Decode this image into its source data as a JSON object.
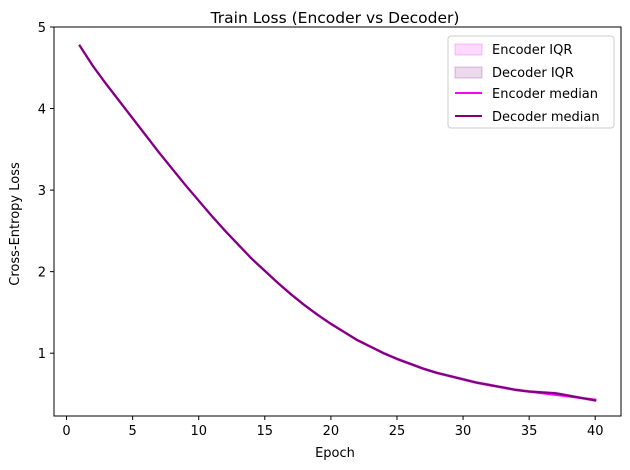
{
  "chart_data": {
    "type": "line",
    "title": "Train Loss (Encoder vs Decoder)",
    "xlabel": "Epoch",
    "ylabel": "Cross-Entropy Loss",
    "xlim": [
      -0.95,
      41.95
    ],
    "ylim": [
      0.23,
      5.0
    ],
    "xticks": [
      0,
      5,
      10,
      15,
      20,
      25,
      30,
      35,
      40
    ],
    "yticks": [
      1,
      2,
      3,
      4,
      5
    ],
    "grid": false,
    "legend_position": "top-right",
    "x": [
      1,
      2,
      3,
      4,
      5,
      6,
      7,
      8,
      9,
      10,
      11,
      12,
      13,
      14,
      15,
      16,
      17,
      18,
      19,
      20,
      21,
      22,
      23,
      24,
      25,
      26,
      27,
      28,
      29,
      30,
      31,
      32,
      33,
      34,
      35,
      36,
      37,
      38,
      39,
      40
    ],
    "series": [
      {
        "name": "Encoder median",
        "color": "#ff00ff",
        "values": [
          4.77,
          4.52,
          4.3,
          4.09,
          3.88,
          3.67,
          3.46,
          3.26,
          3.06,
          2.87,
          2.68,
          2.5,
          2.33,
          2.16,
          2.01,
          1.86,
          1.72,
          1.59,
          1.47,
          1.36,
          1.26,
          1.16,
          1.08,
          1.0,
          0.93,
          0.87,
          0.81,
          0.76,
          0.72,
          0.68,
          0.64,
          0.61,
          0.58,
          0.55,
          0.53,
          0.51,
          0.49,
          0.47,
          0.45,
          0.43
        ]
      },
      {
        "name": "Decoder median",
        "color": "#800080",
        "values": [
          4.77,
          4.52,
          4.3,
          4.09,
          3.88,
          3.67,
          3.46,
          3.26,
          3.06,
          2.87,
          2.68,
          2.5,
          2.33,
          2.16,
          2.01,
          1.86,
          1.72,
          1.59,
          1.47,
          1.36,
          1.26,
          1.16,
          1.08,
          1.0,
          0.93,
          0.87,
          0.81,
          0.76,
          0.72,
          0.68,
          0.64,
          0.61,
          0.58,
          0.55,
          0.53,
          0.52,
          0.51,
          0.48,
          0.45,
          0.42
        ]
      }
    ],
    "bands": [
      {
        "name": "Encoder IQR",
        "color": "#ff00ff",
        "opacity": 0.15,
        "spread": 0.02
      },
      {
        "name": "Decoder IQR",
        "color": "#800080",
        "opacity": 0.15,
        "spread": 0.02
      }
    ]
  }
}
